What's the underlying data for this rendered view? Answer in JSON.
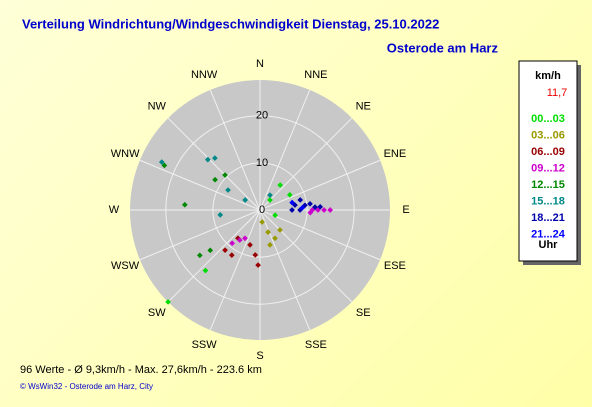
{
  "chart_data": {
    "type": "polar-scatter",
    "title": "Verteilung Windrichtung/Windgeschwindigkeit  Dienstag, 25.10.2022",
    "subtitle": "Osterode am Harz",
    "directions": [
      "N",
      "NNE",
      "NE",
      "ENE",
      "E",
      "ESE",
      "SE",
      "SSE",
      "S",
      "SSW",
      "SW",
      "WSW",
      "W",
      "WNW",
      "NW",
      "NNW"
    ],
    "rlim": [
      0,
      27.6
    ],
    "rticks": [
      0,
      10,
      20
    ],
    "legend_title": "km/h",
    "current": "11,7",
    "legend_footer": "Uhr",
    "series": [
      {
        "name": "00...03",
        "color": "#00dd00",
        "theta": [
          39,
          63,
          45,
          222,
          225,
          109
        ],
        "values": [
          6.8,
          7.1,
          3.0,
          17.3,
          27.6,
          3.4
        ]
      },
      {
        "name": "03...06",
        "color": "#999900",
        "theta": [
          152,
          160,
          135,
          170,
          164
        ],
        "values": [
          6.8,
          5.0,
          6.0,
          2.6,
          7.7
        ]
      },
      {
        "name": "06...09",
        "color": "#990000",
        "theta": [
          221,
          212,
          186,
          196,
          218,
          182
        ],
        "values": [
          11.3,
          11.3,
          9.6,
          7.7,
          7.6,
          11.7
        ]
      },
      {
        "name": "09...12",
        "color": "#cc00cc",
        "theta": [
          90,
          90,
          90,
          90,
          93,
          214,
          208,
          220
        ],
        "values": [
          11.1,
          12.3,
          13.6,
          14.9,
          10.7,
          7.7,
          6.8,
          9.2
        ]
      },
      {
        "name": "12...15",
        "color": "#008800",
        "theta": [
          295,
          274,
          304,
          315,
          233,
          231
        ],
        "values": [
          22.4,
          16.0,
          11.5,
          10.5,
          16.0,
          13.6
        ]
      },
      {
        "name": "15...18",
        "color": "#008888",
        "theta": [
          319,
          314,
          302,
          263,
          296,
          304,
          34
        ],
        "values": [
          14.6,
          15.4,
          8.0,
          8.5,
          23.2,
          3.8,
          3.8
        ]
      },
      {
        "name": "18...21",
        "color": "#0000aa",
        "theta": [
          82,
          76,
          84,
          83,
          87,
          90,
          90,
          87
        ],
        "values": [
          7.5,
          8.8,
          9.6,
          10.7,
          11.7,
          8.5,
          6.8,
          12.8
        ]
      },
      {
        "name": "21...24",
        "color": "#0000ff",
        "theta": [
          77,
          87
        ],
        "values": [
          7.0,
          9.0
        ]
      }
    ],
    "footer": "96 Werte   -   Ø 9,3km/h  -  Max. 27,6km/h   -   223.6 km",
    "credit": "© WsWin32  -  Osterode am Harz, City"
  }
}
